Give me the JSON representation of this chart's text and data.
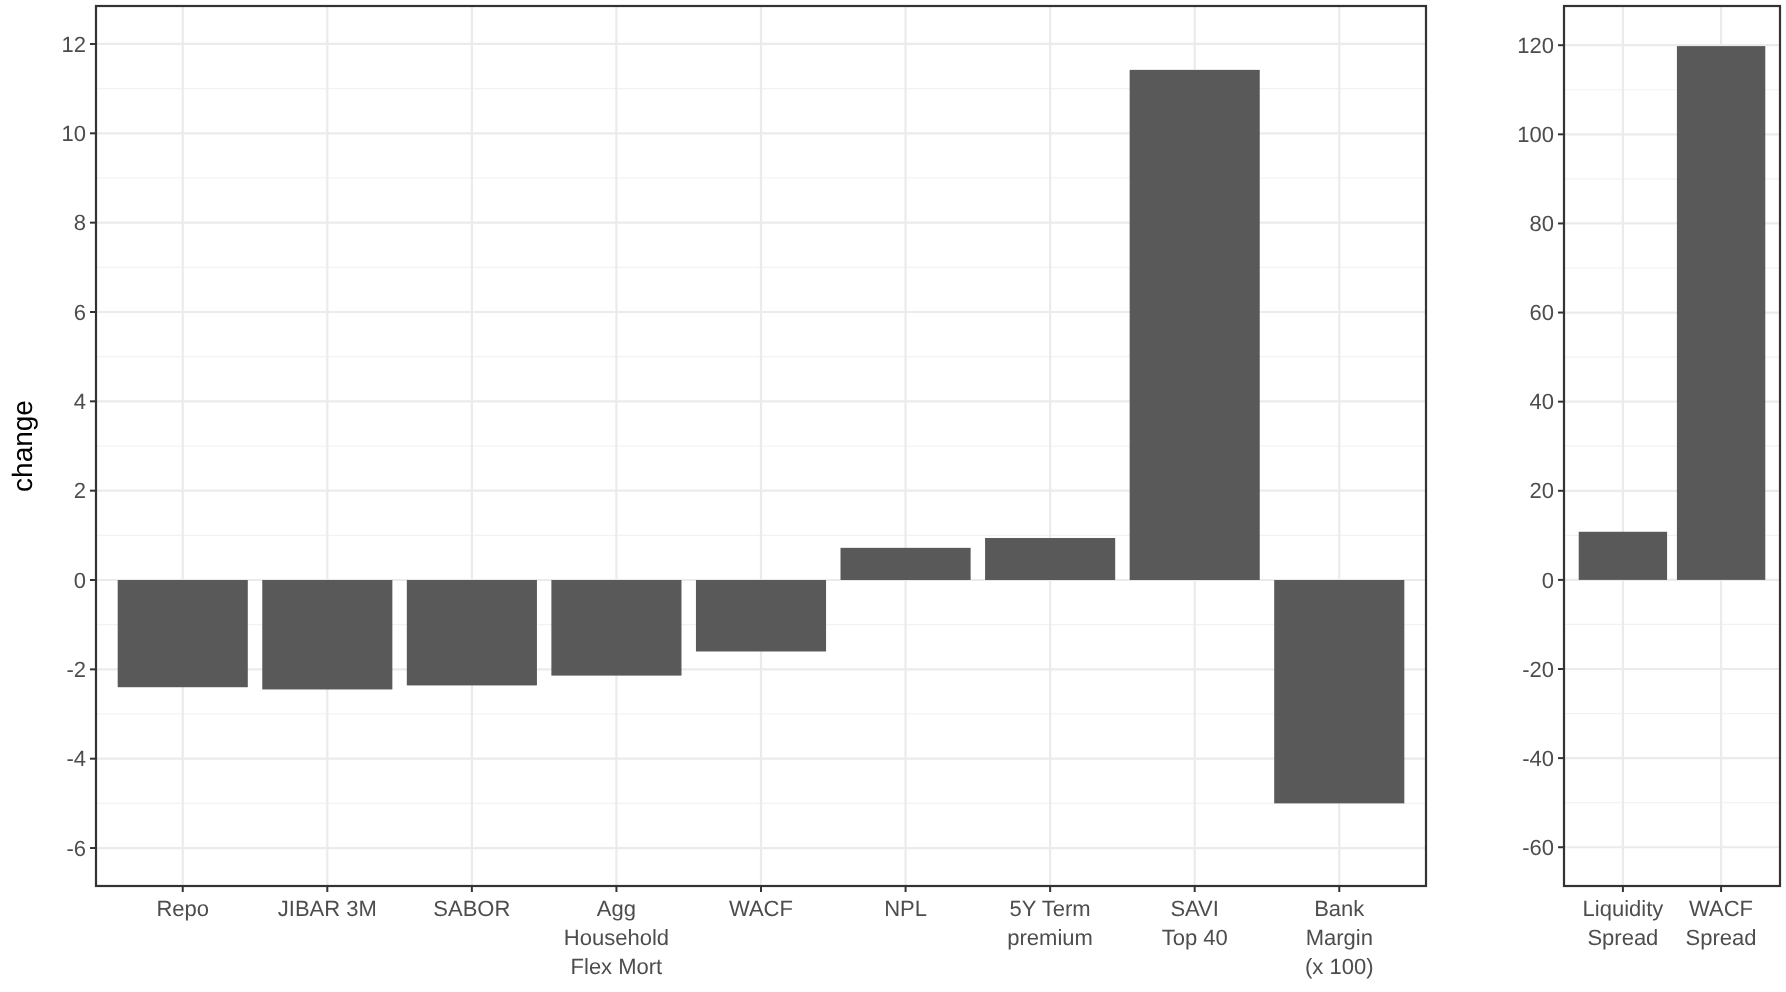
{
  "chart_data": [
    {
      "type": "bar",
      "ylabel": "change",
      "categories": [
        "Repo",
        "JIBAR 3M",
        "SABOR",
        "Agg\nHousehold\nFlex Mort",
        "WACF",
        "NPL",
        "5Y Term\npremium",
        "SAVI\nTop 40",
        "Bank\nMargin\n(x 100)"
      ],
      "values": [
        -2.4,
        -2.45,
        -2.36,
        -2.14,
        -1.6,
        0.72,
        0.94,
        11.42,
        -5.0
      ],
      "color": "#595959",
      "ylim": [
        -6.85,
        12.85
      ],
      "yticks": [
        -6,
        -4,
        -2,
        0,
        2,
        4,
        6,
        8,
        10,
        12
      ],
      "grid": true
    },
    {
      "type": "bar",
      "categories": [
        "Liquidity\nSpread",
        "WACF\nSpread"
      ],
      "values": [
        10.8,
        119.8
      ],
      "color": "#595959",
      "ylim": [
        -68.7,
        128.8
      ],
      "yticks": [
        -60,
        -40,
        -20,
        0,
        20,
        40,
        60,
        80,
        100,
        120
      ],
      "grid": true
    }
  ]
}
